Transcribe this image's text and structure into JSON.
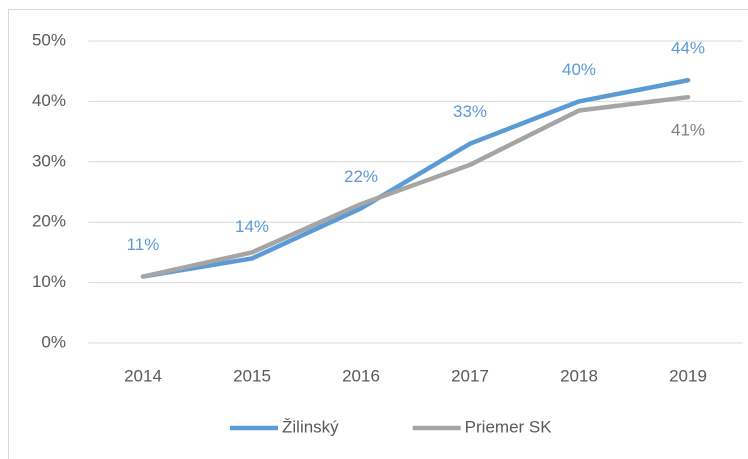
{
  "chart_data": {
    "type": "line",
    "categories": [
      "2014",
      "2015",
      "2016",
      "2017",
      "2018",
      "2019"
    ],
    "series": [
      {
        "name": "Žilinský",
        "color": "#5b9bd5",
        "label_color": "#5b9bd5",
        "label_position": "above",
        "values": [
          11,
          14,
          22.3,
          33,
          40,
          43.5
        ],
        "value_labels": [
          "11%",
          "14%",
          "22%",
          "33%",
          "40%",
          "44%"
        ]
      },
      {
        "name": "Priemer SK",
        "color": "#a5a5a5",
        "label_color": "#7f7f7f",
        "label_position": "below",
        "values": [
          11,
          15,
          23,
          29.5,
          38.5,
          40.7
        ],
        "value_labels": [
          null,
          null,
          null,
          null,
          null,
          "41%"
        ]
      }
    ],
    "ylim": [
      0,
      50
    ],
    "yticks": [
      {
        "value": 0,
        "label": "0%"
      },
      {
        "value": 10,
        "label": "10%"
      },
      {
        "value": 20,
        "label": "20%"
      },
      {
        "value": 30,
        "label": "30%"
      },
      {
        "value": 40,
        "label": "40%"
      },
      {
        "value": 50,
        "label": "50%"
      }
    ],
    "grid": true,
    "legend": "bottom"
  }
}
